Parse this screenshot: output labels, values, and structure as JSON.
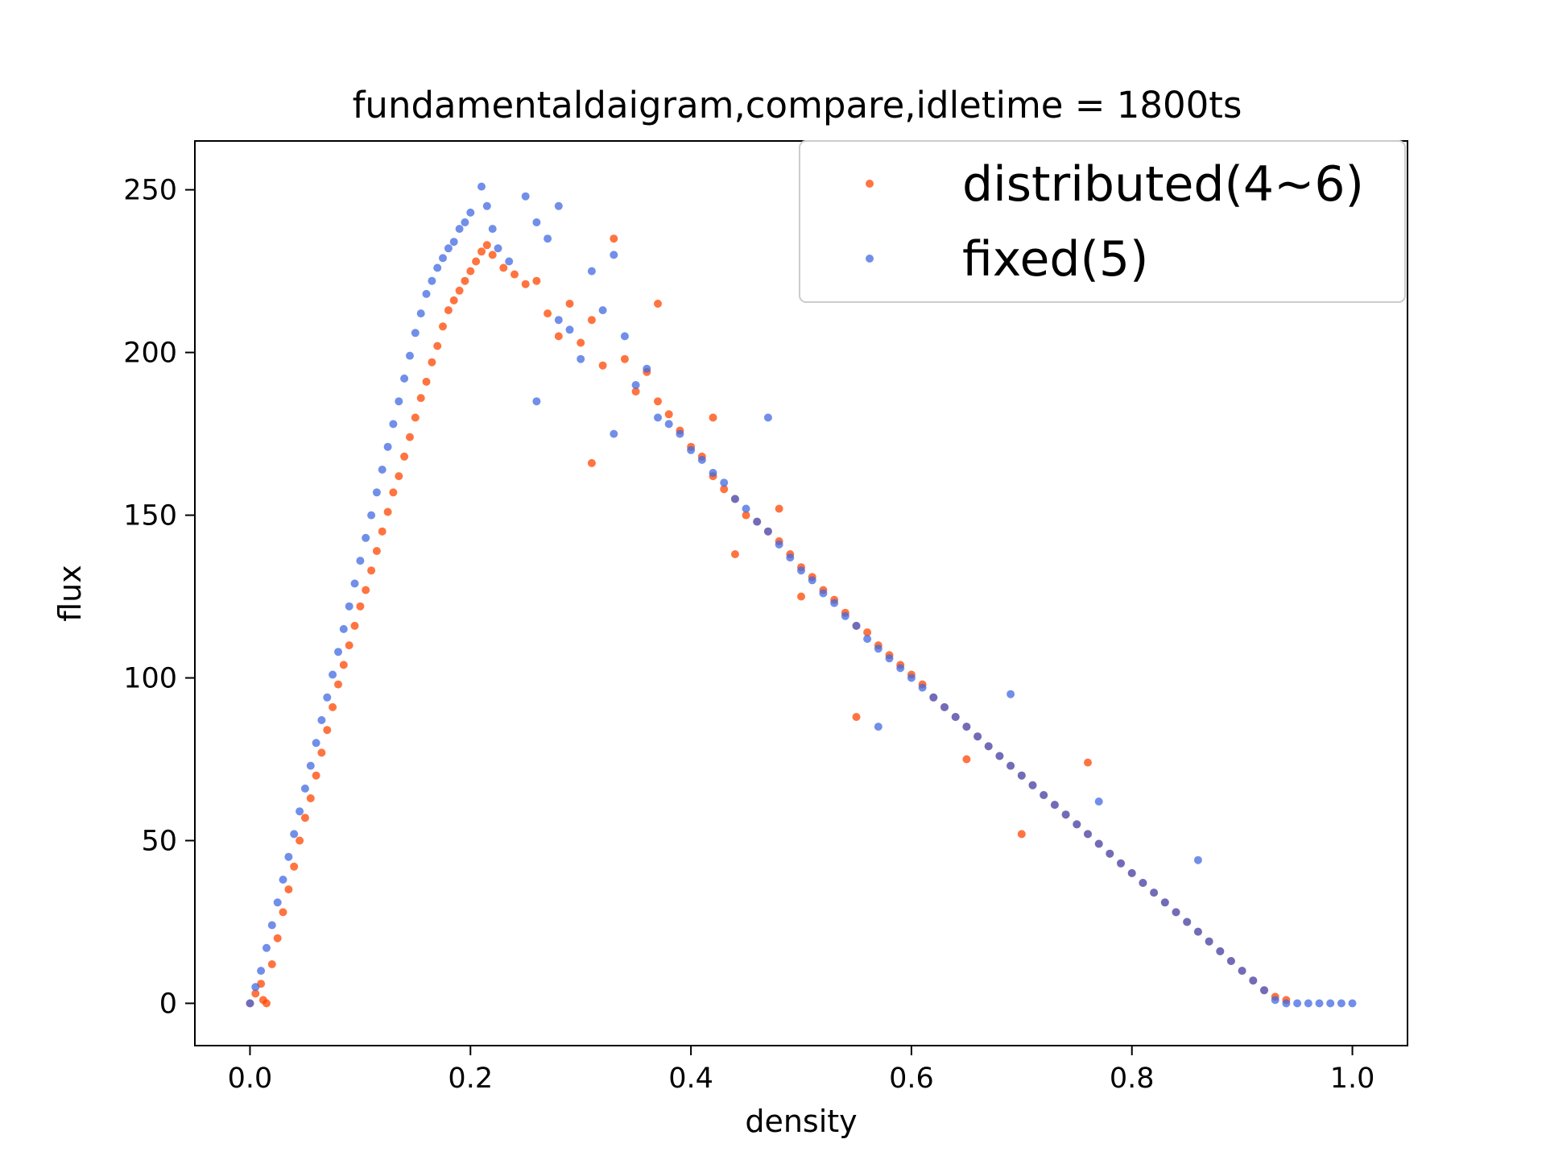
{
  "chart_data": {
    "type": "scatter",
    "title": "fundamentaldaigram,compare,idletime = 1800ts",
    "xlabel": "density",
    "ylabel": "flux",
    "xlim": [
      -0.05,
      1.05
    ],
    "ylim": [
      -13,
      265
    ],
    "xticks": [
      0.0,
      0.2,
      0.4,
      0.6,
      0.8,
      1.0
    ],
    "xtick_labels": [
      "0.0",
      "0.2",
      "0.4",
      "0.6",
      "0.8",
      "1.0"
    ],
    "yticks": [
      0,
      50,
      100,
      150,
      200,
      250
    ],
    "ytick_labels": [
      "0",
      "50",
      "100",
      "150",
      "200",
      "250"
    ],
    "grid": false,
    "legend_position": "top-right",
    "series": [
      {
        "name": "distributed(4~6)",
        "color": "#ff4500",
        "points": [
          [
            0.0,
            0
          ],
          [
            0.005,
            3
          ],
          [
            0.01,
            6
          ],
          [
            0.012,
            1
          ],
          [
            0.015,
            0
          ],
          [
            0.02,
            12
          ],
          [
            0.025,
            20
          ],
          [
            0.03,
            28
          ],
          [
            0.035,
            35
          ],
          [
            0.04,
            42
          ],
          [
            0.045,
            50
          ],
          [
            0.05,
            57
          ],
          [
            0.055,
            63
          ],
          [
            0.06,
            70
          ],
          [
            0.065,
            77
          ],
          [
            0.07,
            84
          ],
          [
            0.075,
            91
          ],
          [
            0.08,
            98
          ],
          [
            0.085,
            104
          ],
          [
            0.09,
            110
          ],
          [
            0.095,
            116
          ],
          [
            0.1,
            122
          ],
          [
            0.105,
            127
          ],
          [
            0.11,
            133
          ],
          [
            0.115,
            139
          ],
          [
            0.12,
            145
          ],
          [
            0.125,
            151
          ],
          [
            0.13,
            157
          ],
          [
            0.135,
            162
          ],
          [
            0.14,
            168
          ],
          [
            0.145,
            174
          ],
          [
            0.15,
            180
          ],
          [
            0.155,
            186
          ],
          [
            0.16,
            191
          ],
          [
            0.165,
            197
          ],
          [
            0.17,
            202
          ],
          [
            0.175,
            208
          ],
          [
            0.18,
            213
          ],
          [
            0.185,
            216
          ],
          [
            0.19,
            219
          ],
          [
            0.195,
            222
          ],
          [
            0.2,
            225
          ],
          [
            0.205,
            228
          ],
          [
            0.21,
            231
          ],
          [
            0.215,
            233
          ],
          [
            0.22,
            230
          ],
          [
            0.23,
            226
          ],
          [
            0.24,
            224
          ],
          [
            0.25,
            221
          ],
          [
            0.26,
            222
          ],
          [
            0.27,
            212
          ],
          [
            0.28,
            205
          ],
          [
            0.29,
            215
          ],
          [
            0.3,
            203
          ],
          [
            0.31,
            210
          ],
          [
            0.32,
            196
          ],
          [
            0.33,
            235
          ],
          [
            0.34,
            198
          ],
          [
            0.35,
            188
          ],
          [
            0.36,
            194
          ],
          [
            0.37,
            185
          ],
          [
            0.38,
            181
          ],
          [
            0.39,
            176
          ],
          [
            0.4,
            171
          ],
          [
            0.41,
            168
          ],
          [
            0.42,
            162
          ],
          [
            0.43,
            158
          ],
          [
            0.44,
            155
          ],
          [
            0.45,
            150
          ],
          [
            0.46,
            148
          ],
          [
            0.47,
            145
          ],
          [
            0.48,
            142
          ],
          [
            0.49,
            138
          ],
          [
            0.5,
            134
          ],
          [
            0.51,
            131
          ],
          [
            0.52,
            127
          ],
          [
            0.53,
            124
          ],
          [
            0.54,
            120
          ],
          [
            0.55,
            116
          ],
          [
            0.56,
            114
          ],
          [
            0.57,
            110
          ],
          [
            0.58,
            107
          ],
          [
            0.59,
            104
          ],
          [
            0.6,
            101
          ],
          [
            0.61,
            98
          ],
          [
            0.62,
            94
          ],
          [
            0.63,
            91
          ],
          [
            0.64,
            88
          ],
          [
            0.65,
            85
          ],
          [
            0.66,
            82
          ],
          [
            0.67,
            79
          ],
          [
            0.68,
            76
          ],
          [
            0.69,
            73
          ],
          [
            0.7,
            70
          ],
          [
            0.71,
            67
          ],
          [
            0.72,
            64
          ],
          [
            0.73,
            61
          ],
          [
            0.74,
            58
          ],
          [
            0.75,
            55
          ],
          [
            0.76,
            52
          ],
          [
            0.77,
            49
          ],
          [
            0.78,
            46
          ],
          [
            0.79,
            43
          ],
          [
            0.8,
            40
          ],
          [
            0.81,
            37
          ],
          [
            0.82,
            34
          ],
          [
            0.83,
            31
          ],
          [
            0.84,
            28
          ],
          [
            0.85,
            25
          ],
          [
            0.86,
            22
          ],
          [
            0.87,
            19
          ],
          [
            0.88,
            16
          ],
          [
            0.89,
            13
          ],
          [
            0.9,
            10
          ],
          [
            0.91,
            7
          ],
          [
            0.92,
            4
          ],
          [
            0.93,
            2
          ],
          [
            0.94,
            1
          ],
          [
            0.5,
            125
          ],
          [
            0.48,
            152
          ],
          [
            0.44,
            138
          ],
          [
            0.42,
            180
          ],
          [
            0.37,
            215
          ],
          [
            0.31,
            166
          ],
          [
            0.55,
            88
          ],
          [
            0.65,
            75
          ],
          [
            0.7,
            52
          ],
          [
            0.76,
            74
          ]
        ]
      },
      {
        "name": "fixed(5)",
        "color": "#4169e1",
        "points": [
          [
            0.0,
            0
          ],
          [
            0.005,
            5
          ],
          [
            0.01,
            10
          ],
          [
            0.015,
            17
          ],
          [
            0.02,
            24
          ],
          [
            0.025,
            31
          ],
          [
            0.03,
            38
          ],
          [
            0.035,
            45
          ],
          [
            0.04,
            52
          ],
          [
            0.045,
            59
          ],
          [
            0.05,
            66
          ],
          [
            0.055,
            73
          ],
          [
            0.06,
            80
          ],
          [
            0.065,
            87
          ],
          [
            0.07,
            94
          ],
          [
            0.075,
            101
          ],
          [
            0.08,
            108
          ],
          [
            0.085,
            115
          ],
          [
            0.09,
            122
          ],
          [
            0.095,
            129
          ],
          [
            0.1,
            136
          ],
          [
            0.105,
            143
          ],
          [
            0.11,
            150
          ],
          [
            0.115,
            157
          ],
          [
            0.12,
            164
          ],
          [
            0.125,
            171
          ],
          [
            0.13,
            178
          ],
          [
            0.135,
            185
          ],
          [
            0.14,
            192
          ],
          [
            0.145,
            199
          ],
          [
            0.15,
            206
          ],
          [
            0.155,
            212
          ],
          [
            0.16,
            218
          ],
          [
            0.165,
            222
          ],
          [
            0.17,
            226
          ],
          [
            0.175,
            229
          ],
          [
            0.18,
            232
          ],
          [
            0.185,
            234
          ],
          [
            0.19,
            238
          ],
          [
            0.195,
            240
          ],
          [
            0.2,
            243
          ],
          [
            0.21,
            251
          ],
          [
            0.215,
            245
          ],
          [
            0.22,
            238
          ],
          [
            0.225,
            232
          ],
          [
            0.235,
            228
          ],
          [
            0.25,
            248
          ],
          [
            0.26,
            240
          ],
          [
            0.27,
            235
          ],
          [
            0.28,
            210
          ],
          [
            0.29,
            207
          ],
          [
            0.3,
            198
          ],
          [
            0.31,
            225
          ],
          [
            0.32,
            213
          ],
          [
            0.33,
            230
          ],
          [
            0.34,
            205
          ],
          [
            0.35,
            190
          ],
          [
            0.36,
            195
          ],
          [
            0.37,
            180
          ],
          [
            0.38,
            178
          ],
          [
            0.39,
            175
          ],
          [
            0.4,
            170
          ],
          [
            0.41,
            167
          ],
          [
            0.42,
            163
          ],
          [
            0.43,
            160
          ],
          [
            0.44,
            155
          ],
          [
            0.45,
            152
          ],
          [
            0.46,
            148
          ],
          [
            0.47,
            145
          ],
          [
            0.48,
            141
          ],
          [
            0.49,
            137
          ],
          [
            0.5,
            133
          ],
          [
            0.51,
            130
          ],
          [
            0.52,
            126
          ],
          [
            0.53,
            123
          ],
          [
            0.54,
            119
          ],
          [
            0.55,
            116
          ],
          [
            0.56,
            112
          ],
          [
            0.57,
            109
          ],
          [
            0.58,
            106
          ],
          [
            0.59,
            103
          ],
          [
            0.6,
            100
          ],
          [
            0.61,
            97
          ],
          [
            0.62,
            94
          ],
          [
            0.63,
            91
          ],
          [
            0.64,
            88
          ],
          [
            0.65,
            85
          ],
          [
            0.66,
            82
          ],
          [
            0.67,
            79
          ],
          [
            0.68,
            76
          ],
          [
            0.69,
            73
          ],
          [
            0.7,
            70
          ],
          [
            0.71,
            67
          ],
          [
            0.72,
            64
          ],
          [
            0.73,
            61
          ],
          [
            0.74,
            58
          ],
          [
            0.75,
            55
          ],
          [
            0.76,
            52
          ],
          [
            0.77,
            49
          ],
          [
            0.78,
            46
          ],
          [
            0.79,
            43
          ],
          [
            0.8,
            40
          ],
          [
            0.81,
            37
          ],
          [
            0.82,
            34
          ],
          [
            0.83,
            31
          ],
          [
            0.84,
            28
          ],
          [
            0.85,
            25
          ],
          [
            0.86,
            22
          ],
          [
            0.87,
            19
          ],
          [
            0.88,
            16
          ],
          [
            0.89,
            13
          ],
          [
            0.9,
            10
          ],
          [
            0.91,
            7
          ],
          [
            0.92,
            4
          ],
          [
            0.93,
            1
          ],
          [
            0.94,
            0
          ],
          [
            0.95,
            0
          ],
          [
            0.96,
            0
          ],
          [
            0.97,
            0
          ],
          [
            0.98,
            0
          ],
          [
            0.99,
            0
          ],
          [
            1.0,
            0
          ],
          [
            0.28,
            245
          ],
          [
            0.26,
            185
          ],
          [
            0.33,
            175
          ],
          [
            0.47,
            180
          ],
          [
            0.57,
            85
          ],
          [
            0.69,
            95
          ],
          [
            0.77,
            62
          ],
          [
            0.86,
            44
          ]
        ]
      }
    ]
  }
}
